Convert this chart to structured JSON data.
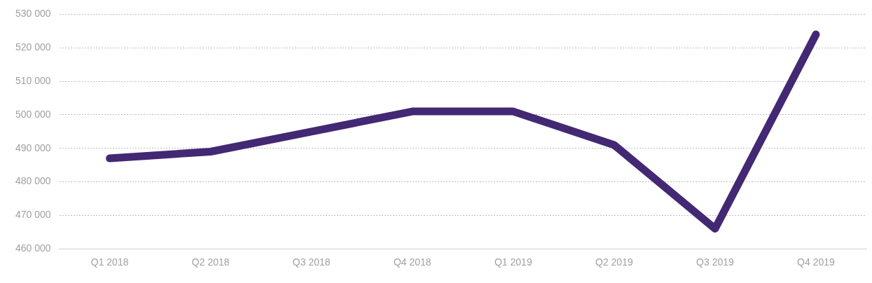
{
  "chart_data": {
    "type": "line",
    "categories": [
      "Q1 2018",
      "Q2 2018",
      "Q3 2018",
      "Q4 2018",
      "Q1 2019",
      "Q2 2019",
      "Q3 2019",
      "Q4 2019"
    ],
    "series": [
      {
        "color": "#432874",
        "values": [
          487000,
          489000,
          495000,
          501000,
          501000,
          491000,
          466000,
          524000
        ]
      }
    ],
    "ylim": [
      460000,
      530000
    ],
    "yticks": [
      {
        "value": 460000,
        "label": "460 000"
      },
      {
        "value": 470000,
        "label": "470 000"
      },
      {
        "value": 480000,
        "label": "480 000"
      },
      {
        "value": 490000,
        "label": "490 000"
      },
      {
        "value": 500000,
        "label": "500 000"
      },
      {
        "value": 510000,
        "label": "510 000"
      },
      {
        "value": 520000,
        "label": "520 000"
      },
      {
        "value": 530000,
        "label": "530 000"
      }
    ],
    "grid": "y",
    "legend": false,
    "marker": "none",
    "line_style": "solid"
  }
}
